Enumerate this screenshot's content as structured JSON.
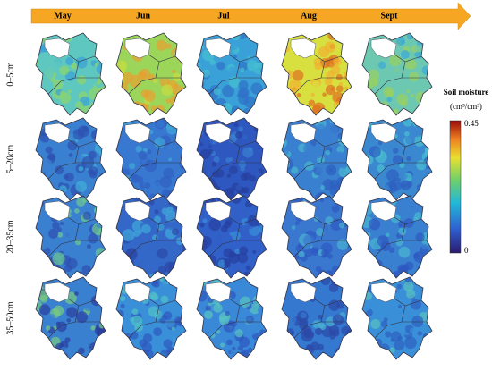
{
  "columns": [
    "May",
    "Jun",
    "Jul",
    "Aug",
    "Sept"
  ],
  "rows": [
    "0–5cm",
    "5–20cm",
    "20–35cm",
    "35–50cm"
  ],
  "colorbar": {
    "title": "Soil moisture",
    "unit": "(cm³/cm³)",
    "max": 0.45,
    "min": 0
  }
}
